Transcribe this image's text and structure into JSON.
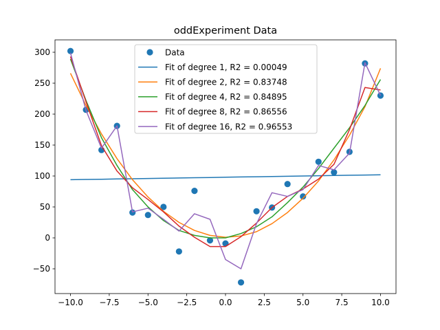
{
  "chart_data": {
    "type": "scatter",
    "title": "oddExperiment Data",
    "xlabel": "",
    "ylabel": "",
    "xlim": [
      -11,
      11
    ],
    "ylim": [
      -90,
      320
    ],
    "xticks": [
      -10,
      -7.5,
      -5,
      -2.5,
      0,
      2.5,
      5,
      7.5,
      10
    ],
    "xtick_labels": [
      "−10.0",
      "−7.5",
      "−5.0",
      "−2.5",
      "0.0",
      "2.5",
      "5.0",
      "7.5",
      "10.0"
    ],
    "yticks": [
      -50,
      0,
      50,
      100,
      150,
      200,
      250,
      300
    ],
    "ytick_labels": [
      "−50",
      "0",
      "50",
      "100",
      "150",
      "200",
      "250",
      "300"
    ],
    "grid": false,
    "legend_position": "upper-center",
    "scatter": {
      "name": "Data",
      "color": "#1f77b4",
      "x": [
        -10,
        -9,
        -8,
        -7,
        -6,
        -5,
        -4,
        -3,
        -2,
        -1,
        0,
        1,
        2,
        3,
        4,
        5,
        6,
        7,
        8,
        9,
        10
      ],
      "y": [
        302,
        207,
        142,
        181,
        41,
        37,
        50,
        -22,
        76,
        -4,
        -9,
        -72,
        43,
        49,
        87,
        67,
        123,
        106,
        139,
        282,
        230
      ]
    },
    "series": [
      {
        "name": "Fit of degree 1, R2 = 0.00049",
        "color": "#1f77b4",
        "x": [
          -10,
          -9,
          -8,
          -7,
          -6,
          -5,
          -4,
          -3,
          -2,
          -1,
          0,
          1,
          2,
          3,
          4,
          5,
          6,
          7,
          8,
          9,
          10
        ],
        "y": [
          94,
          94.4,
          94.8,
          95.2,
          95.6,
          96,
          96.4,
          96.8,
          97.2,
          97.6,
          98,
          98.4,
          98.8,
          99.2,
          99.6,
          100,
          100.4,
          100.8,
          101.2,
          101.6,
          102
        ]
      },
      {
        "name": "Fit of degree 2, R2 = 0.83748",
        "color": "#ff7f0e",
        "x": [
          -10,
          -9,
          -8,
          -7,
          -6,
          -5,
          -4,
          -3,
          -2,
          -1,
          0,
          1,
          2,
          3,
          4,
          5,
          6,
          7,
          8,
          9,
          10
        ],
        "y": [
          266,
          214,
          168,
          128,
          94,
          66,
          43,
          25,
          12,
          4,
          1,
          3,
          10,
          23,
          41,
          64,
          92,
          126,
          166,
          212,
          274
        ]
      },
      {
        "name": "Fit of degree 4, R2 = 0.84895",
        "color": "#2ca02c",
        "x": [
          -10,
          -9,
          -8,
          -7,
          -6,
          -5,
          -4,
          -3,
          -2,
          -1,
          0,
          1,
          2,
          3,
          4,
          5,
          6,
          7,
          8,
          9,
          10
        ],
        "y": [
          289,
          222,
          162,
          117,
          78,
          50,
          28,
          12,
          4,
          0,
          0,
          7,
          18,
          34,
          57,
          82,
          112,
          145,
          178,
          214,
          256
        ]
      },
      {
        "name": "Fit of degree 8, R2 = 0.86556",
        "color": "#d62728",
        "x": [
          -10,
          -9,
          -8,
          -7,
          -6,
          -5,
          -4,
          -3,
          -2,
          -1,
          0,
          1,
          2,
          3,
          4,
          5,
          6,
          7,
          8,
          9,
          10
        ],
        "y": [
          293,
          220,
          149,
          108,
          81,
          62,
          42,
          19,
          1,
          -14,
          -14,
          2,
          24,
          49,
          67,
          79,
          95,
          119,
          175,
          243,
          239
        ]
      },
      {
        "name": "Fit of degree 16, R2 = 0.96553",
        "color": "#9467bd",
        "x": [
          -10,
          -9,
          -8,
          -7,
          -6,
          -5,
          -4,
          -3,
          -2,
          -1,
          0,
          1,
          2,
          3,
          4,
          5,
          6,
          7,
          8,
          9,
          10
        ],
        "y": [
          299,
          206,
          145,
          181,
          42,
          48,
          30,
          11,
          39,
          30,
          -35,
          -50,
          23,
          73,
          67,
          78,
          117,
          110,
          137,
          283,
          230
        ]
      }
    ]
  }
}
